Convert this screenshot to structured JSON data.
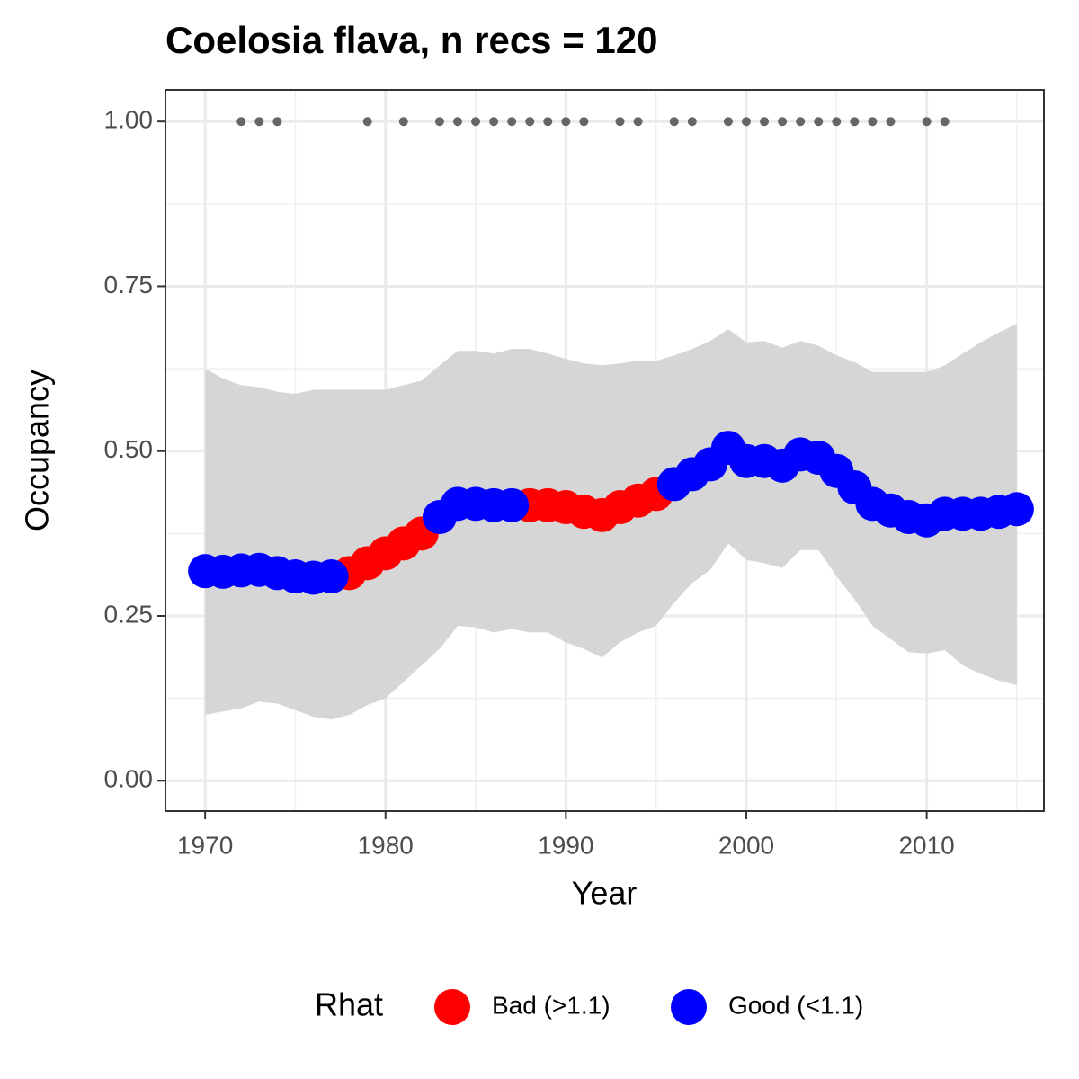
{
  "chart_data": {
    "type": "scatter",
    "title": "Coelosia flava, n recs = 120",
    "x_label": "Year",
    "y_label": "Occupancy",
    "x": [
      1970,
      1971,
      1972,
      1973,
      1974,
      1975,
      1976,
      1977,
      1978,
      1979,
      1980,
      1981,
      1982,
      1983,
      1984,
      1985,
      1986,
      1987,
      1988,
      1989,
      1990,
      1991,
      1992,
      1993,
      1994,
      1995,
      1996,
      1997,
      1998,
      1999,
      2000,
      2001,
      2002,
      2003,
      2004,
      2005,
      2006,
      2007,
      2008,
      2009,
      2010,
      2011,
      2012,
      2013,
      2014,
      2015
    ],
    "series": [
      {
        "name": "Bad (>1.1)",
        "color": "#ff0000",
        "values": [
          null,
          null,
          null,
          null,
          null,
          null,
          null,
          null,
          0.315,
          0.33,
          0.345,
          0.36,
          0.375,
          null,
          null,
          null,
          null,
          null,
          0.418,
          0.418,
          0.415,
          0.408,
          0.403,
          0.415,
          0.425,
          0.435,
          null,
          null,
          null,
          null,
          null,
          null,
          null,
          null,
          null,
          null,
          null,
          null,
          null,
          null,
          null,
          null,
          null,
          null,
          null,
          null
        ]
      },
      {
        "name": "Good (<1.1)",
        "color": "#0000ff",
        "values": [
          0.318,
          0.317,
          0.319,
          0.32,
          0.315,
          0.31,
          0.308,
          0.31,
          null,
          null,
          null,
          null,
          null,
          0.4,
          0.42,
          0.42,
          0.418,
          0.418,
          null,
          null,
          null,
          null,
          null,
          null,
          null,
          null,
          0.45,
          0.465,
          0.48,
          0.505,
          0.485,
          0.485,
          0.478,
          0.495,
          0.49,
          0.47,
          0.445,
          0.42,
          0.41,
          0.4,
          0.395,
          0.405,
          0.405,
          0.405,
          0.408,
          0.412
        ]
      }
    ],
    "ribbon": {
      "color": "#d6d6d6",
      "upper": [
        0.625,
        0.61,
        0.6,
        0.597,
        0.59,
        0.587,
        0.593,
        0.593,
        0.593,
        0.593,
        0.593,
        0.6,
        0.607,
        0.63,
        0.652,
        0.652,
        0.648,
        0.655,
        0.655,
        0.648,
        0.64,
        0.633,
        0.63,
        0.633,
        0.637,
        0.637,
        0.645,
        0.655,
        0.667,
        0.685,
        0.665,
        0.667,
        0.657,
        0.667,
        0.66,
        0.645,
        0.635,
        0.62,
        0.62,
        0.62,
        0.62,
        0.63,
        0.648,
        0.665,
        0.68,
        0.693
      ],
      "lower": [
        0.1,
        0.105,
        0.11,
        0.12,
        0.117,
        0.107,
        0.097,
        0.093,
        0.1,
        0.115,
        0.125,
        0.15,
        0.175,
        0.2,
        0.235,
        0.233,
        0.225,
        0.23,
        0.225,
        0.225,
        0.21,
        0.2,
        0.187,
        0.21,
        0.225,
        0.235,
        0.27,
        0.3,
        0.32,
        0.36,
        0.335,
        0.33,
        0.323,
        0.35,
        0.35,
        0.31,
        0.275,
        0.235,
        0.215,
        0.195,
        0.193,
        0.198,
        0.175,
        0.162,
        0.152,
        0.145
      ]
    },
    "records": {
      "color": "#666666",
      "x": [
        1972,
        1973,
        1974,
        1979,
        1981,
        1983,
        1984,
        1985,
        1986,
        1987,
        1988,
        1989,
        1990,
        1991,
        1993,
        1994,
        1996,
        1997,
        1999,
        2000,
        2001,
        2002,
        2003,
        2004,
        2005,
        2006,
        2007,
        2008,
        2010,
        2011
      ],
      "values": [
        1,
        1,
        1,
        1,
        1,
        1,
        1,
        1,
        1,
        1,
        1,
        1,
        1,
        1,
        1,
        1,
        1,
        1,
        1,
        1,
        1,
        1,
        1,
        1,
        1,
        1,
        1,
        1,
        1,
        1
      ]
    },
    "xlim": [
      1967.8,
      2016.5
    ],
    "ylim": [
      -0.046,
      1.048
    ],
    "xticks": [
      1970,
      1980,
      1990,
      2000,
      2010
    ],
    "yticks": [
      {
        "value": 0,
        "label": "0.00"
      },
      {
        "value": 0.25,
        "label": "0.25"
      },
      {
        "value": 0.5,
        "label": "0.50"
      },
      {
        "value": 0.75,
        "label": "0.75"
      },
      {
        "value": 1,
        "label": "1.00"
      }
    ],
    "x_minor_grid": [
      1975,
      1985,
      1995,
      2005,
      2015
    ],
    "y_minor_grid": [
      0.125,
      0.375,
      0.625,
      0.875
    ],
    "grid": true,
    "legend": {
      "title": "Rhat",
      "position": "bottom"
    }
  }
}
